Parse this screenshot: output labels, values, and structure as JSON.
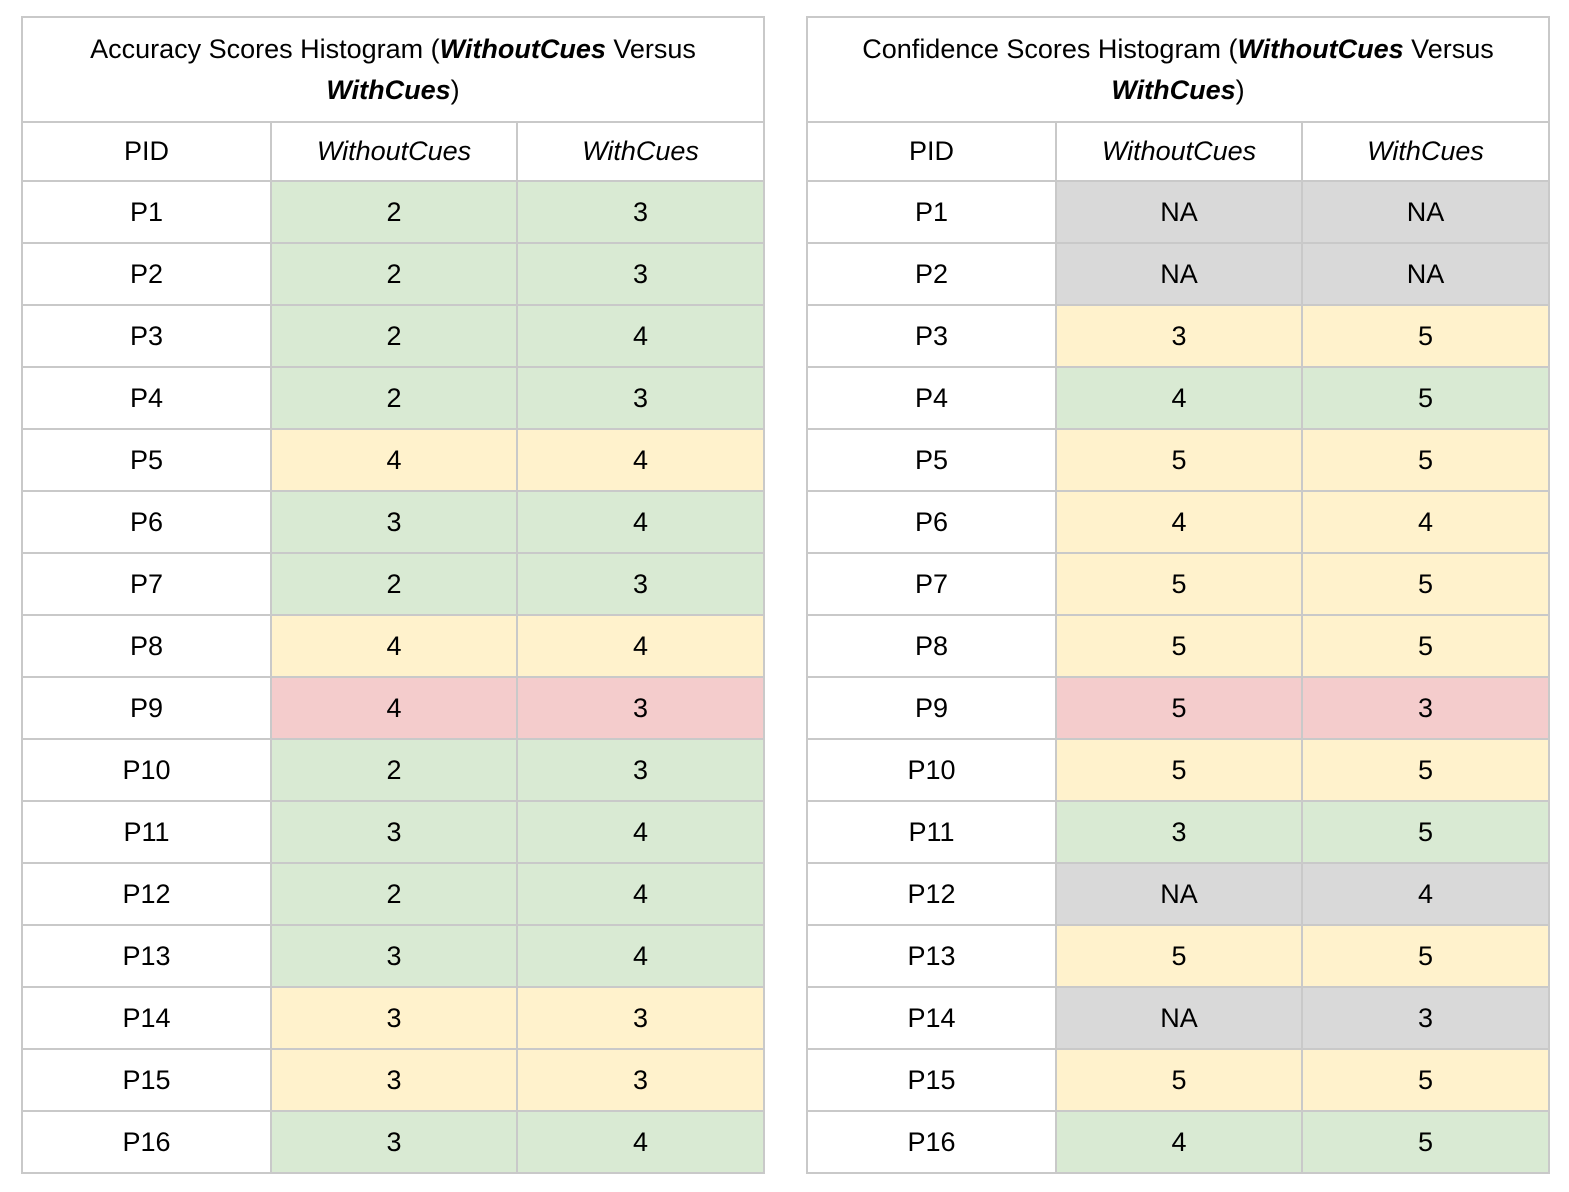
{
  "colors": {
    "green": "#d9ead3",
    "yellow": "#fff2cc",
    "red": "#f4cccc",
    "gray": "#d9d9d9",
    "border": "#c9c9c9",
    "text": "#000000",
    "background": "#ffffff"
  },
  "tables": [
    {
      "name": "accuracy",
      "title": {
        "prefix": "Accuracy Scores Histogram (",
        "em1": "WithoutCues",
        "mid": " Versus ",
        "em2": "WithCues",
        "suffix": ")"
      },
      "columns": [
        {
          "label": "PID",
          "italic": false
        },
        {
          "label": "WithoutCues",
          "italic": true
        },
        {
          "label": "WithCues",
          "italic": true
        }
      ],
      "rows": [
        {
          "pid": "P1",
          "without_cues": "2",
          "with_cues": "3",
          "highlight": "green"
        },
        {
          "pid": "P2",
          "without_cues": "2",
          "with_cues": "3",
          "highlight": "green"
        },
        {
          "pid": "P3",
          "without_cues": "2",
          "with_cues": "4",
          "highlight": "green"
        },
        {
          "pid": "P4",
          "without_cues": "2",
          "with_cues": "3",
          "highlight": "green"
        },
        {
          "pid": "P5",
          "without_cues": "4",
          "with_cues": "4",
          "highlight": "yellow"
        },
        {
          "pid": "P6",
          "without_cues": "3",
          "with_cues": "4",
          "highlight": "green"
        },
        {
          "pid": "P7",
          "without_cues": "2",
          "with_cues": "3",
          "highlight": "green"
        },
        {
          "pid": "P8",
          "without_cues": "4",
          "with_cues": "4",
          "highlight": "yellow"
        },
        {
          "pid": "P9",
          "without_cues": "4",
          "with_cues": "3",
          "highlight": "red"
        },
        {
          "pid": "P10",
          "without_cues": "2",
          "with_cues": "3",
          "highlight": "green"
        },
        {
          "pid": "P11",
          "without_cues": "3",
          "with_cues": "4",
          "highlight": "green"
        },
        {
          "pid": "P12",
          "without_cues": "2",
          "with_cues": "4",
          "highlight": "green"
        },
        {
          "pid": "P13",
          "without_cues": "3",
          "with_cues": "4",
          "highlight": "green"
        },
        {
          "pid": "P14",
          "without_cues": "3",
          "with_cues": "3",
          "highlight": "yellow"
        },
        {
          "pid": "P15",
          "without_cues": "3",
          "with_cues": "3",
          "highlight": "yellow"
        },
        {
          "pid": "P16",
          "without_cues": "3",
          "with_cues": "4",
          "highlight": "green"
        }
      ]
    },
    {
      "name": "confidence",
      "title": {
        "prefix": "Confidence Scores Histogram (",
        "em1": "WithoutCues",
        "mid": " Versus ",
        "em2": "WithCues",
        "suffix": ")"
      },
      "columns": [
        {
          "label": "PID",
          "italic": false
        },
        {
          "label": "WithoutCues",
          "italic": true
        },
        {
          "label": "WithCues",
          "italic": true
        }
      ],
      "rows": [
        {
          "pid": "P1",
          "without_cues": "NA",
          "with_cues": "NA",
          "highlight": "gray"
        },
        {
          "pid": "P2",
          "without_cues": "NA",
          "with_cues": "NA",
          "highlight": "gray"
        },
        {
          "pid": "P3",
          "without_cues": "3",
          "with_cues": "5",
          "highlight": "yellow"
        },
        {
          "pid": "P4",
          "without_cues": "4",
          "with_cues": "5",
          "highlight": "green"
        },
        {
          "pid": "P5",
          "without_cues": "5",
          "with_cues": "5",
          "highlight": "yellow"
        },
        {
          "pid": "P6",
          "without_cues": "4",
          "with_cues": "4",
          "highlight": "yellow"
        },
        {
          "pid": "P7",
          "without_cues": "5",
          "with_cues": "5",
          "highlight": "yellow"
        },
        {
          "pid": "P8",
          "without_cues": "5",
          "with_cues": "5",
          "highlight": "yellow"
        },
        {
          "pid": "P9",
          "without_cues": "5",
          "with_cues": "3",
          "highlight": "red"
        },
        {
          "pid": "P10",
          "without_cues": "5",
          "with_cues": "5",
          "highlight": "yellow"
        },
        {
          "pid": "P11",
          "without_cues": "3",
          "with_cues": "5",
          "highlight": "green"
        },
        {
          "pid": "P12",
          "without_cues": "NA",
          "with_cues": "4",
          "highlight": "gray"
        },
        {
          "pid": "P13",
          "without_cues": "5",
          "with_cues": "5",
          "highlight": "yellow"
        },
        {
          "pid": "P14",
          "without_cues": "NA",
          "with_cues": "3",
          "highlight": "gray"
        },
        {
          "pid": "P15",
          "without_cues": "5",
          "with_cues": "5",
          "highlight": "yellow"
        },
        {
          "pid": "P16",
          "without_cues": "4",
          "with_cues": "5",
          "highlight": "green"
        }
      ]
    }
  ],
  "chart_data": [
    {
      "type": "table",
      "title": "Accuracy Scores Histogram (WithoutCues Versus WithCues)",
      "columns": [
        "PID",
        "WithoutCues",
        "WithCues"
      ],
      "rows": [
        [
          "P1",
          2,
          3
        ],
        [
          "P2",
          2,
          3
        ],
        [
          "P3",
          2,
          4
        ],
        [
          "P4",
          2,
          3
        ],
        [
          "P5",
          4,
          4
        ],
        [
          "P6",
          3,
          4
        ],
        [
          "P7",
          2,
          3
        ],
        [
          "P8",
          4,
          4
        ],
        [
          "P9",
          4,
          3
        ],
        [
          "P10",
          2,
          3
        ],
        [
          "P11",
          3,
          4
        ],
        [
          "P12",
          2,
          4
        ],
        [
          "P13",
          3,
          4
        ],
        [
          "P14",
          3,
          3
        ],
        [
          "P15",
          3,
          3
        ],
        [
          "P16",
          3,
          4
        ]
      ],
      "row_highlights": [
        "green",
        "green",
        "green",
        "green",
        "yellow",
        "green",
        "green",
        "yellow",
        "red",
        "green",
        "green",
        "green",
        "green",
        "yellow",
        "yellow",
        "green"
      ]
    },
    {
      "type": "table",
      "title": "Confidence Scores Histogram (WithoutCues Versus WithCues)",
      "columns": [
        "PID",
        "WithoutCues",
        "WithCues"
      ],
      "rows": [
        [
          "P1",
          "NA",
          "NA"
        ],
        [
          "P2",
          "NA",
          "NA"
        ],
        [
          "P3",
          3,
          5
        ],
        [
          "P4",
          4,
          5
        ],
        [
          "P5",
          5,
          5
        ],
        [
          "P6",
          4,
          4
        ],
        [
          "P7",
          5,
          5
        ],
        [
          "P8",
          5,
          5
        ],
        [
          "P9",
          5,
          3
        ],
        [
          "P10",
          5,
          5
        ],
        [
          "P11",
          3,
          5
        ],
        [
          "P12",
          "NA",
          4
        ],
        [
          "P13",
          5,
          5
        ],
        [
          "P14",
          "NA",
          3
        ],
        [
          "P15",
          5,
          5
        ],
        [
          "P16",
          4,
          5
        ]
      ],
      "row_highlights": [
        "gray",
        "gray",
        "yellow",
        "green",
        "yellow",
        "yellow",
        "yellow",
        "yellow",
        "red",
        "yellow",
        "green",
        "gray",
        "yellow",
        "gray",
        "yellow",
        "green"
      ]
    }
  ]
}
